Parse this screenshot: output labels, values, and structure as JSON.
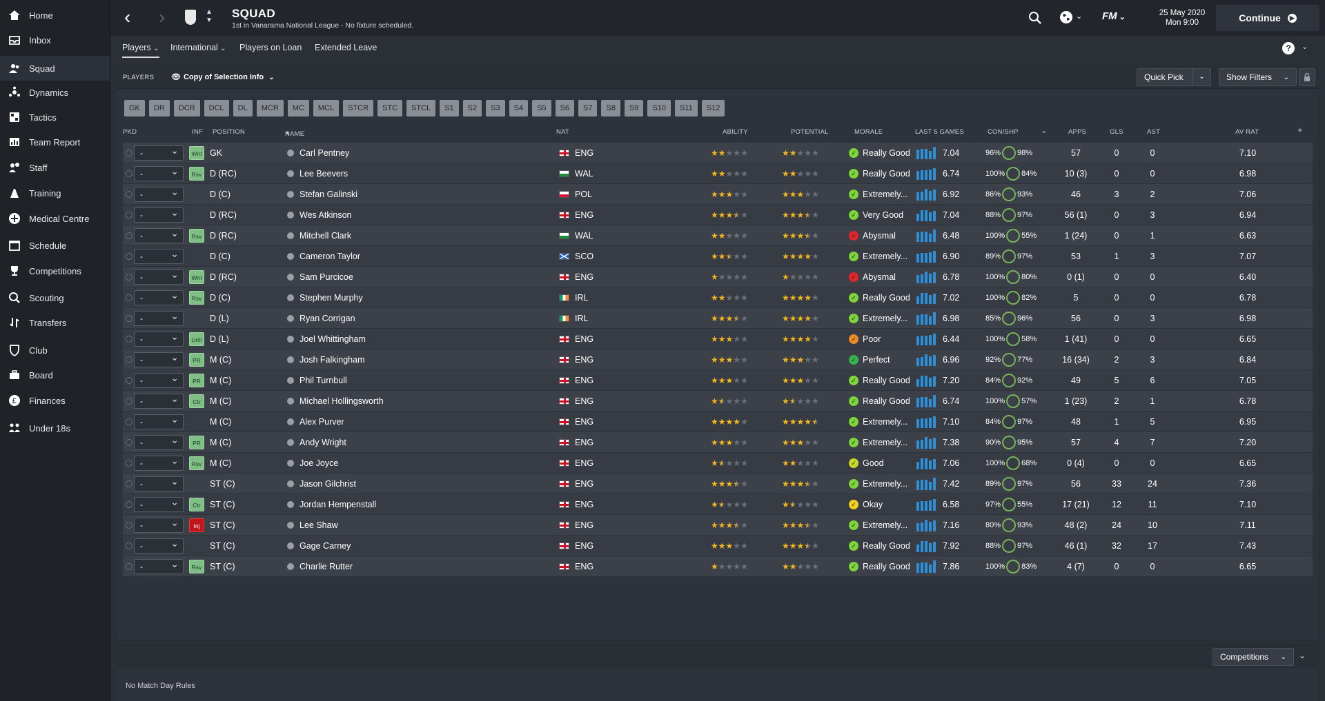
{
  "sidebar": {
    "items": [
      {
        "label": "Home",
        "icon": "home-icon"
      },
      {
        "label": "Inbox",
        "icon": "inbox-icon"
      },
      {
        "label": "Squad",
        "icon": "squad-icon"
      },
      {
        "label": "Dynamics",
        "icon": "dynamics-icon"
      },
      {
        "label": "Tactics",
        "icon": "tactics-icon"
      },
      {
        "label": "Team Report",
        "icon": "team-report-icon"
      },
      {
        "label": "Staff",
        "icon": "staff-icon"
      },
      {
        "label": "Training",
        "icon": "training-icon"
      },
      {
        "label": "Medical Centre",
        "icon": "medical-icon"
      },
      {
        "label": "Schedule",
        "icon": "schedule-icon"
      },
      {
        "label": "Competitions",
        "icon": "trophy-icon"
      },
      {
        "label": "Scouting",
        "icon": "scouting-icon"
      },
      {
        "label": "Transfers",
        "icon": "transfers-icon"
      },
      {
        "label": "Club",
        "icon": "club-icon"
      },
      {
        "label": "Board",
        "icon": "board-icon"
      },
      {
        "label": "Finances",
        "icon": "finances-icon"
      },
      {
        "label": "Under 18s",
        "icon": "under18-icon"
      }
    ]
  },
  "header": {
    "title": "SQUAD",
    "subtitle": "1st in Vanarama National League - No fixture scheduled.",
    "date": "25 May 2020",
    "time": "Mon 9:00",
    "fm": "FM",
    "continue_label": "Continue"
  },
  "subtabs": [
    "Players",
    "International",
    "Players on Loan",
    "Extended Leave"
  ],
  "toolbar": {
    "section_label": "PLAYERS",
    "view_label": "Copy of Selection Info",
    "quick_pick": "Quick Pick",
    "show_filters": "Show Filters"
  },
  "positions": [
    "GK",
    "DR",
    "DCR",
    "DCL",
    "DL",
    "MCR",
    "MC",
    "MCL",
    "STCR",
    "STC",
    "STCL",
    "S1",
    "S2",
    "S3",
    "S4",
    "S5",
    "S6",
    "S7",
    "S8",
    "S9",
    "S10",
    "S11",
    "S12"
  ],
  "columns": {
    "pkd": "PKD",
    "inf": "INF",
    "position": "POSITION",
    "name": "NAME",
    "nat": "NAT",
    "ability": "ABILITY",
    "potential": "POTENTIAL",
    "morale": "MORALE",
    "last5": "LAST 5 GAMES",
    "conshp": "CON/SHP",
    "apps": "APPS",
    "gls": "GLS",
    "ast": "AST",
    "avrat": "AV RAT"
  },
  "players": [
    {
      "sel": "-",
      "inf": "Wnt",
      "pos": "GK",
      "name": "Carl Pentney",
      "nat": "ENG",
      "ab": 2,
      "pot": 2,
      "morale": "Really Good",
      "mcol": "#7dd43b",
      "l5": "7.04",
      "con": "96%",
      "shp": "98%",
      "apps": "57",
      "gls": "0",
      "ast": "0",
      "av": "7.10"
    },
    {
      "sel": "-",
      "inf": "Rsv",
      "pos": "D (RC)",
      "name": "Lee Beevers",
      "nat": "WAL",
      "ab": 2,
      "pot": 2,
      "morale": "Really Good",
      "mcol": "#7dd43b",
      "l5": "6.74",
      "con": "100%",
      "shp": "84%",
      "apps": "10 (3)",
      "gls": "0",
      "ast": "0",
      "av": "6.98"
    },
    {
      "sel": "-",
      "inf": "",
      "pos": "D (C)",
      "name": "Stefan Galinski",
      "nat": "POL",
      "ab": 3,
      "pot": 3,
      "morale": "Extremely...",
      "mcol": "#7dd43b",
      "l5": "6.92",
      "con": "86%",
      "shp": "93%",
      "apps": "46",
      "gls": "3",
      "ast": "2",
      "av": "7.06"
    },
    {
      "sel": "-",
      "inf": "",
      "pos": "D (RC)",
      "name": "Wes Atkinson",
      "nat": "ENG",
      "ab": 3.5,
      "pot": 3.5,
      "morale": "Very Good",
      "mcol": "#7dd43b",
      "l5": "7.04",
      "con": "88%",
      "shp": "97%",
      "apps": "56 (1)",
      "gls": "0",
      "ast": "3",
      "av": "6.94"
    },
    {
      "sel": "-",
      "inf": "Rsv",
      "pos": "D (RC)",
      "name": "Mitchell Clark",
      "nat": "WAL",
      "ab": 2,
      "pot": 3.5,
      "morale": "Abysmal",
      "mcol": "#e0262b",
      "l5": "6.48",
      "con": "100%",
      "shp": "55%",
      "apps": "1 (24)",
      "gls": "0",
      "ast": "1",
      "av": "6.63"
    },
    {
      "sel": "-",
      "inf": "",
      "pos": "D (C)",
      "name": "Cameron Taylor",
      "nat": "SCO",
      "ab": 2.5,
      "pot": 4,
      "morale": "Extremely...",
      "mcol": "#7dd43b",
      "l5": "6.90",
      "con": "89%",
      "shp": "97%",
      "apps": "53",
      "gls": "1",
      "ast": "3",
      "av": "7.07"
    },
    {
      "sel": "-",
      "inf": "Wnt",
      "pos": "D (RC)",
      "name": "Sam Purcicoe",
      "nat": "ENG",
      "ab": 1,
      "pot": 1,
      "morale": "Abysmal",
      "mcol": "#e0262b",
      "l5": "6.78",
      "con": "100%",
      "shp": "80%",
      "apps": "0 (1)",
      "gls": "0",
      "ast": "0",
      "av": "6.40"
    },
    {
      "sel": "-",
      "inf": "Rsv",
      "pos": "D (C)",
      "name": "Stephen Murphy",
      "nat": "IRL",
      "ab": 2,
      "pot": 4,
      "morale": "Really Good",
      "mcol": "#7dd43b",
      "l5": "7.02",
      "con": "100%",
      "shp": "82%",
      "apps": "5",
      "gls": "0",
      "ast": "0",
      "av": "6.78"
    },
    {
      "sel": "-",
      "inf": "",
      "pos": "D (L)",
      "name": "Ryan Corrigan",
      "nat": "IRL",
      "ab": 3.5,
      "pot": 4,
      "morale": "Extremely...",
      "mcol": "#7dd43b",
      "l5": "6.98",
      "con": "85%",
      "shp": "96%",
      "apps": "56",
      "gls": "0",
      "ast": "3",
      "av": "6.98"
    },
    {
      "sel": "-",
      "inf": "Unh",
      "pos": "D (L)",
      "name": "Joel Whittingham",
      "nat": "ENG",
      "ab": 3,
      "pot": 4,
      "morale": "Poor",
      "mcol": "#f08a23",
      "l5": "6.44",
      "con": "100%",
      "shp": "58%",
      "apps": "1 (41)",
      "gls": "0",
      "ast": "0",
      "av": "6.65"
    },
    {
      "sel": "-",
      "inf": "PR",
      "pos": "M (C)",
      "name": "Josh Falkingham",
      "nat": "ENG",
      "ab": 3,
      "pot": 3,
      "morale": "Perfect",
      "mcol": "#37b24d",
      "l5": "6.96",
      "con": "92%",
      "shp": "77%",
      "apps": "16 (34)",
      "gls": "2",
      "ast": "3",
      "av": "6.84"
    },
    {
      "sel": "-",
      "inf": "PR",
      "pos": "M (C)",
      "name": "Phil Turnbull",
      "nat": "ENG",
      "ab": 3,
      "pot": 3,
      "morale": "Really Good",
      "mcol": "#7dd43b",
      "l5": "7.20",
      "con": "84%",
      "shp": "92%",
      "apps": "49",
      "gls": "5",
      "ast": "6",
      "av": "7.05"
    },
    {
      "sel": "-",
      "inf": "Ctr",
      "pos": "M (C)",
      "name": "Michael Hollingsworth",
      "nat": "ENG",
      "ab": 1.5,
      "pot": 1.5,
      "morale": "Really Good",
      "mcol": "#7dd43b",
      "l5": "6.74",
      "con": "100%",
      "shp": "57%",
      "apps": "1 (23)",
      "gls": "2",
      "ast": "1",
      "av": "6.78"
    },
    {
      "sel": "-",
      "inf": "",
      "pos": "M (C)",
      "name": "Alex Purver",
      "nat": "ENG",
      "ab": 4,
      "pot": 4.5,
      "morale": "Extremely...",
      "mcol": "#7dd43b",
      "l5": "7.10",
      "con": "84%",
      "shp": "97%",
      "apps": "48",
      "gls": "1",
      "ast": "5",
      "av": "6.95"
    },
    {
      "sel": "-",
      "inf": "PR",
      "pos": "M (C)",
      "name": "Andy Wright",
      "nat": "ENG",
      "ab": 3,
      "pot": 3,
      "morale": "Extremely...",
      "mcol": "#7dd43b",
      "l5": "7.38",
      "con": "90%",
      "shp": "95%",
      "apps": "57",
      "gls": "4",
      "ast": "7",
      "av": "7.20"
    },
    {
      "sel": "-",
      "inf": "Rsv",
      "pos": "M (C)",
      "name": "Joe Joyce",
      "nat": "ENG",
      "ab": 1.5,
      "pot": 2,
      "morale": "Good",
      "mcol": "#c8d82a",
      "l5": "7.06",
      "con": "100%",
      "shp": "68%",
      "apps": "0 (4)",
      "gls": "0",
      "ast": "0",
      "av": "6.65"
    },
    {
      "sel": "-",
      "inf": "",
      "pos": "ST (C)",
      "name": "Jason Gilchrist",
      "nat": "ENG",
      "ab": 3.5,
      "pot": 3.5,
      "morale": "Extremely...",
      "mcol": "#7dd43b",
      "l5": "7.42",
      "con": "89%",
      "shp": "97%",
      "apps": "56",
      "gls": "33",
      "ast": "24",
      "av": "7.36"
    },
    {
      "sel": "-",
      "inf": "Ctr",
      "pos": "ST (C)",
      "name": "Jordan Hempenstall",
      "nat": "ENG",
      "ab": 1.5,
      "pot": 1.5,
      "morale": "Okay",
      "mcol": "#f2d01f",
      "l5": "6.58",
      "con": "97%",
      "shp": "55%",
      "apps": "17 (21)",
      "gls": "12",
      "ast": "11",
      "av": "7.10"
    },
    {
      "sel": "-",
      "inf": "Inj",
      "pos": "ST (C)",
      "name": "Lee Shaw",
      "nat": "ENG",
      "ab": 3.5,
      "pot": 3.5,
      "morale": "Extremely...",
      "mcol": "#7dd43b",
      "l5": "7.16",
      "con": "80%",
      "shp": "93%",
      "apps": "48 (2)",
      "gls": "24",
      "ast": "10",
      "av": "7.11"
    },
    {
      "sel": "-",
      "inf": "",
      "pos": "ST (C)",
      "name": "Gage Carney",
      "nat": "ENG",
      "ab": 3,
      "pot": 3.5,
      "morale": "Really Good",
      "mcol": "#7dd43b",
      "l5": "7.92",
      "con": "88%",
      "shp": "97%",
      "apps": "46 (1)",
      "gls": "32",
      "ast": "17",
      "av": "7.43"
    },
    {
      "sel": "-",
      "inf": "Rsv",
      "pos": "ST (C)",
      "name": "Charlie Rutter",
      "nat": "ENG",
      "ab": 1,
      "pot": 2,
      "morale": "Really Good",
      "mcol": "#7dd43b",
      "l5": "7.86",
      "con": "100%",
      "shp": "83%",
      "apps": "4 (7)",
      "gls": "0",
      "ast": "0",
      "av": "6.65"
    }
  ],
  "bottom": {
    "competitions": "Competitions",
    "no_rules": "No Match Day Rules"
  },
  "colors": {
    "accent_blue": "#2e8fd6",
    "star": "#f3b61f"
  }
}
